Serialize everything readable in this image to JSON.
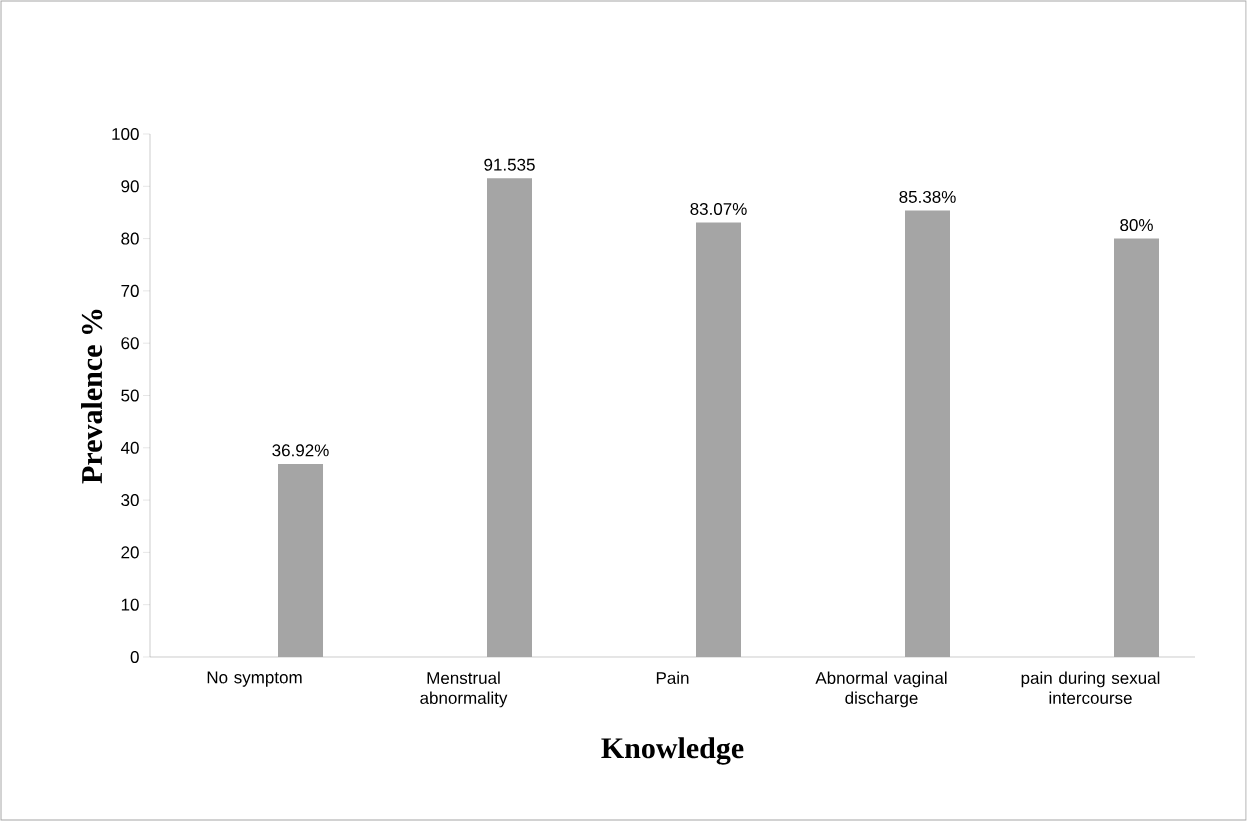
{
  "chart_data": {
    "type": "bar",
    "xlabel": "Knowledge",
    "ylabel": "Prevalence %",
    "categories": [
      "No symptom",
      "Menstrual abnormality",
      "Pain",
      "Abnormal vaginal discharge",
      "pain during sexual intercourse"
    ],
    "values": [
      36.92,
      91.535,
      83.07,
      85.38,
      80
    ],
    "value_labels": [
      "36.92%",
      "91.535",
      "83.07%",
      "85.38%",
      "80%"
    ],
    "color": "#a5a5a5",
    "ylim": [
      0,
      100
    ],
    "yticks": [
      0,
      10,
      20,
      30,
      40,
      50,
      60,
      70,
      80,
      90,
      100
    ]
  }
}
